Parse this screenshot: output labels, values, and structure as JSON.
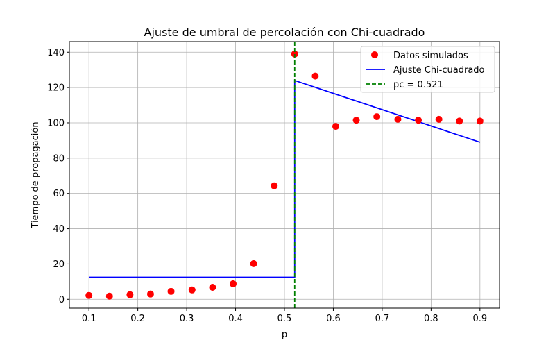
{
  "chart_data": {
    "type": "scatter",
    "title": "Ajuste de umbral de percolación con Chi-cuadrado",
    "xlabel": "p",
    "ylabel": "Tiempo de propagación",
    "xlim": [
      0.06,
      0.94
    ],
    "ylim": [
      -5,
      146
    ],
    "xticks": [
      0.1,
      0.2,
      0.3,
      0.4,
      0.5,
      0.6,
      0.7,
      0.8,
      0.9
    ],
    "xtick_labels": [
      "0.1",
      "0.2",
      "0.3",
      "0.4",
      "0.5",
      "0.6",
      "0.7",
      "0.8",
      "0.9"
    ],
    "yticks": [
      0,
      20,
      40,
      60,
      80,
      100,
      120,
      140
    ],
    "ytick_labels": [
      "0",
      "20",
      "40",
      "60",
      "80",
      "100",
      "120",
      "140"
    ],
    "grid": true,
    "legend_position": "top-right",
    "series": [
      {
        "name": "Datos simulados",
        "kind": "scatter",
        "color": "#ff0000",
        "x": [
          0.1,
          0.142,
          0.184,
          0.226,
          0.268,
          0.311,
          0.353,
          0.395,
          0.437,
          0.479,
          0.521,
          0.563,
          0.605,
          0.647,
          0.689,
          0.732,
          0.774,
          0.816,
          0.858,
          0.9
        ],
        "y": [
          2.2,
          1.8,
          2.6,
          3.0,
          4.5,
          5.3,
          6.8,
          8.8,
          20.2,
          64.3,
          139.0,
          126.5,
          98.0,
          101.5,
          103.5,
          102.0,
          101.5,
          102.0,
          101.0,
          101.0
        ]
      },
      {
        "name": "Ajuste Chi-cuadrado",
        "kind": "line",
        "color": "#0000ff",
        "x": [
          0.1,
          0.521,
          0.521,
          0.9
        ],
        "y": [
          12.5,
          12.5,
          124.0,
          89.0
        ]
      },
      {
        "name": "pc = 0.521",
        "kind": "vline",
        "color": "#008000",
        "x": 0.521
      }
    ]
  }
}
